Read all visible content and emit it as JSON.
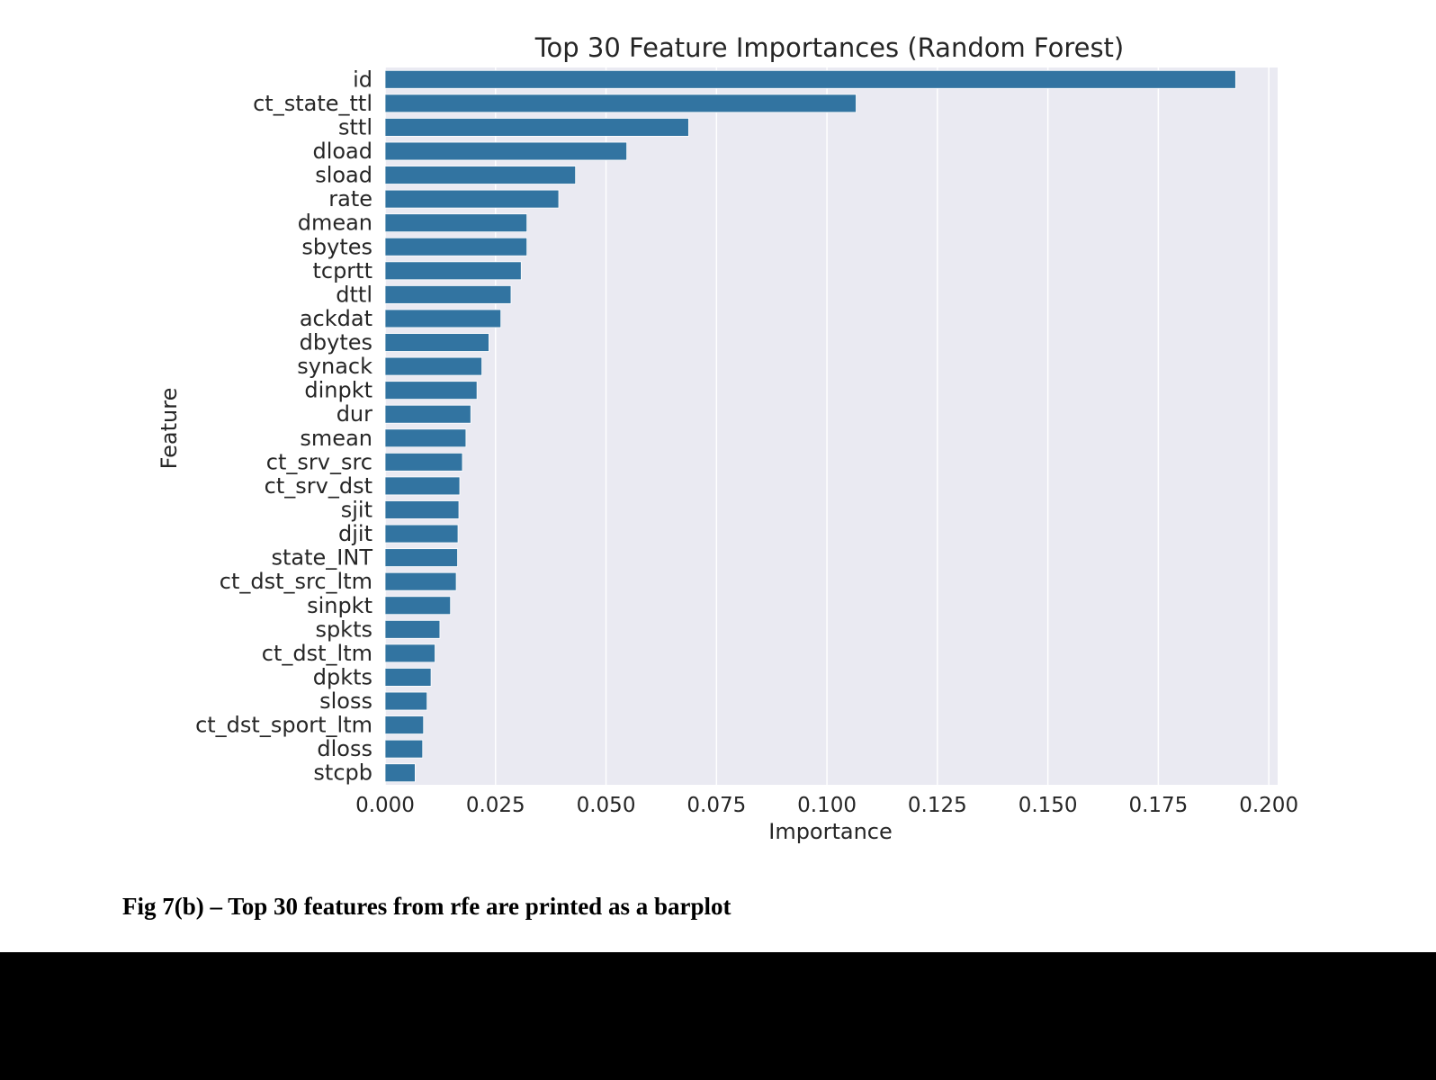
{
  "caption": "Fig 7(b) – Top 30 features from rfe are printed as a barplot",
  "colors": {
    "bar": "#3274a1",
    "plot_background": "#eaeaf2",
    "grid": "#ffffff",
    "text": "#262626"
  },
  "chart_data": {
    "type": "bar",
    "orientation": "horizontal",
    "title": "Top 30 Feature Importances (Random Forest)",
    "xlabel": "Importance",
    "ylabel": "Feature",
    "xlim": [
      0,
      0.202
    ],
    "xticks": [
      0.0,
      0.025,
      0.05,
      0.075,
      0.1,
      0.125,
      0.15,
      0.175,
      0.2
    ],
    "xtick_labels": [
      "0.000",
      "0.025",
      "0.050",
      "0.075",
      "0.100",
      "0.125",
      "0.150",
      "0.175",
      "0.200"
    ],
    "grid": true,
    "categories": [
      "id",
      "ct_state_ttl",
      "sttl",
      "dload",
      "sload",
      "rate",
      "dmean",
      "sbytes",
      "tcprtt",
      "dttl",
      "ackdat",
      "dbytes",
      "synack",
      "dinpkt",
      "dur",
      "smean",
      "ct_srv_src",
      "ct_srv_dst",
      "sjit",
      "djit",
      "state_INT",
      "ct_dst_src_ltm",
      "sinpkt",
      "spkts",
      "ct_dst_ltm",
      "dpkts",
      "sloss",
      "ct_dst_sport_ltm",
      "dloss",
      "stcpb"
    ],
    "values": [
      0.1925,
      0.1066,
      0.0687,
      0.0547,
      0.0431,
      0.0393,
      0.0321,
      0.0321,
      0.0308,
      0.0285,
      0.0262,
      0.0235,
      0.0219,
      0.0208,
      0.0194,
      0.0183,
      0.0175,
      0.0169,
      0.0167,
      0.0165,
      0.0164,
      0.0161,
      0.0148,
      0.0124,
      0.0113,
      0.0104,
      0.0095,
      0.0087,
      0.0085,
      0.0068
    ]
  }
}
